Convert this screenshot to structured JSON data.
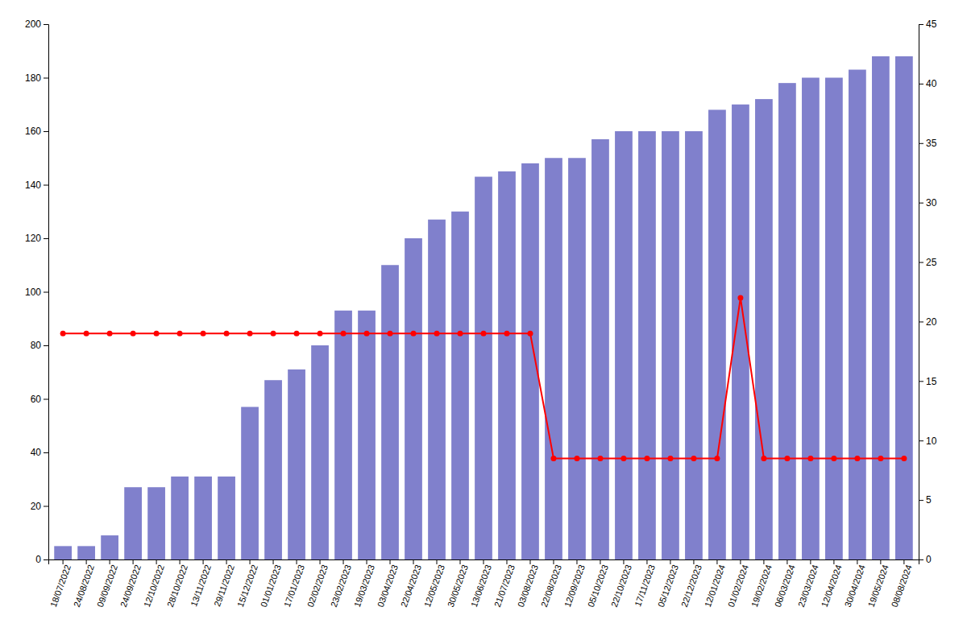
{
  "chart_data": {
    "type": "bar",
    "categories": [
      "18/07/2022",
      "24/08/2022",
      "09/09/2022",
      "24/09/2022",
      "12/10/2022",
      "28/10/2022",
      "13/11/2022",
      "29/11/2022",
      "15/12/2022",
      "01/01/2023",
      "17/01/2023",
      "02/02/2023",
      "23/02/2023",
      "19/03/2023",
      "03/04/2023",
      "22/04/2023",
      "12/05/2023",
      "30/05/2023",
      "13/06/2023",
      "21/07/2023",
      "03/08/2023",
      "22/08/2023",
      "12/09/2023",
      "05/10/2023",
      "22/10/2023",
      "17/11/2023",
      "05/12/2023",
      "22/12/2023",
      "12/01/2024",
      "01/02/2024",
      "19/02/2024",
      "06/03/2024",
      "23/03/2024",
      "12/04/2024",
      "30/04/2024",
      "19/05/2024",
      "08/08/2024"
    ],
    "series": [
      {
        "type": "bar",
        "color": "#8080CC",
        "values": [
          5,
          5,
          9,
          27,
          27,
          31,
          31,
          31,
          57,
          67,
          71,
          80,
          93,
          93,
          110,
          120,
          127,
          130,
          143,
          145,
          148,
          150,
          150,
          157,
          160,
          160,
          160,
          160,
          168,
          170,
          172,
          178,
          180,
          180,
          183,
          188,
          188
        ]
      },
      {
        "type": "line",
        "color": "#FF0000",
        "marker": "circle",
        "axis": "y2",
        "values": [
          19,
          19,
          19,
          19,
          19,
          19,
          19,
          19,
          19,
          19,
          19,
          19,
          19,
          19,
          19,
          19,
          19,
          19,
          19,
          19,
          19,
          8.5,
          8.5,
          8.5,
          8.5,
          8.5,
          8.5,
          8.5,
          8.5,
          22,
          8.5,
          8.5,
          8.5,
          8.5,
          8.5,
          8.5,
          8.5
        ]
      }
    ],
    "ylim": [
      0,
      200
    ],
    "yticks": [
      0,
      20,
      40,
      60,
      80,
      100,
      120,
      140,
      160,
      180,
      200
    ],
    "y2lim": [
      0,
      45
    ],
    "y2ticks": [
      0,
      5,
      10,
      15,
      20,
      25,
      30,
      35,
      40,
      45
    ],
    "grid": false
  }
}
